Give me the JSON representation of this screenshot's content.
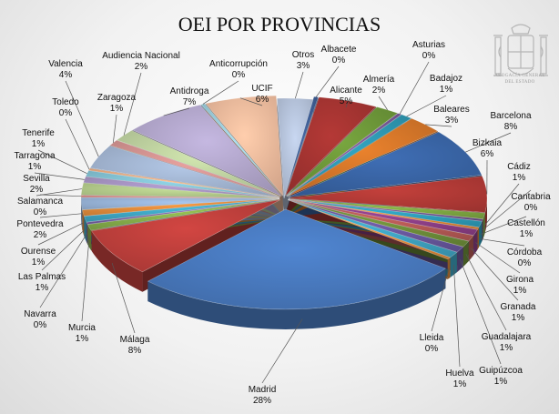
{
  "title": "OEI POR PROVINCIAS",
  "emblem": {
    "caption_line1": "ABOGACÍA GENERAL",
    "caption_line2": "DEL ESTADO"
  },
  "chart_data": {
    "type": "pie",
    "style": "3d-exploded",
    "title": "OEI POR PROVINCIAS",
    "value_unit": "%",
    "slices": [
      {
        "label": "Otros",
        "value": 3,
        "color": "#b9c7df"
      },
      {
        "label": "Albacete",
        "value": 0,
        "color": "#3f5f96"
      },
      {
        "label": "Alicante",
        "value": 5,
        "color": "#a83532"
      },
      {
        "label": "Almería",
        "value": 2,
        "color": "#6f9a3a"
      },
      {
        "label": "Asturias",
        "value": 0,
        "color": "#7a5b9a"
      },
      {
        "label": "Badajoz",
        "value": 1,
        "color": "#2f9ab5"
      },
      {
        "label": "Baleares",
        "value": 3,
        "color": "#d9782a"
      },
      {
        "label": "Barcelona",
        "value": 8,
        "color": "#3a66a8"
      },
      {
        "label": "Bizkaia",
        "value": 6,
        "color": "#b53b37"
      },
      {
        "label": "Cádiz",
        "value": 1,
        "color": "#80aa43"
      },
      {
        "label": "Cantabria",
        "value": 0,
        "color": "#6b4f8f"
      },
      {
        "label": "Castellón",
        "value": 1,
        "color": "#2e9fbc"
      },
      {
        "label": "Córdoba",
        "value": 0,
        "color": "#e0852f"
      },
      {
        "label": "Girona",
        "value": 1,
        "color": "#8e3f88"
      },
      {
        "label": "Granada",
        "value": 1,
        "color": "#b85a56"
      },
      {
        "label": "Guadalajara",
        "value": 1,
        "color": "#6e8f3a"
      },
      {
        "label": "Guipúzcoa",
        "value": 1,
        "color": "#6a58a0"
      },
      {
        "label": "Huelva",
        "value": 1,
        "color": "#3fa6c4"
      },
      {
        "label": "Lleida",
        "value": 0,
        "color": "#e28b3a"
      },
      {
        "label": "Madrid",
        "value": 28,
        "color": "#4a7cc2"
      },
      {
        "label": "Málaga",
        "value": 8,
        "color": "#c2413d"
      },
      {
        "label": "Murcia",
        "value": 1,
        "color": "#89b24c"
      },
      {
        "label": "Navarra",
        "value": 0,
        "color": "#7b63a8"
      },
      {
        "label": "Las Palmas",
        "value": 1,
        "color": "#40a9c7"
      },
      {
        "label": "Ourense",
        "value": 1,
        "color": "#e58e3c"
      },
      {
        "label": "Pontevedra",
        "value": 2,
        "color": "#9bb7dc"
      },
      {
        "label": "Salamanca",
        "value": 0,
        "color": "#d88a87"
      },
      {
        "label": "Sevilla",
        "value": 2,
        "color": "#b7cf8e"
      },
      {
        "label": "Tarragona",
        "value": 1,
        "color": "#a996c6"
      },
      {
        "label": "Tenerife",
        "value": 1,
        "color": "#86c7d9"
      },
      {
        "label": "Toledo",
        "value": 0,
        "color": "#f2b184"
      },
      {
        "label": "Valencia",
        "value": 4,
        "color": "#a6b9d6"
      },
      {
        "label": "Zaragoza",
        "value": 1,
        "color": "#d99794"
      },
      {
        "label": "Audiencia Nacional",
        "value": 2,
        "color": "#c2d6a3"
      },
      {
        "label": "Antidroga",
        "value": 7,
        "color": "#b6aad0"
      },
      {
        "label": "Anticorrupción",
        "value": 0,
        "color": "#9fd3e2"
      },
      {
        "label": "UCIF",
        "value": 6,
        "color": "#f5bfa0"
      }
    ]
  }
}
